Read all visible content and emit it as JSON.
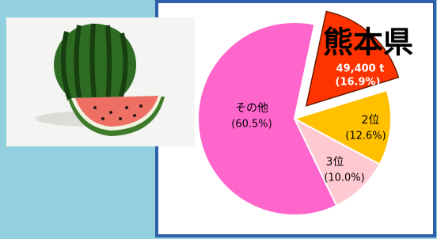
{
  "chart_data": {
    "type": "pie",
    "categories": [
      "熊本県",
      "2位",
      "3位",
      "その他"
    ],
    "values": [
      16.9,
      12.6,
      10.0,
      60.5
    ],
    "value_labels": [
      "(16.9%)",
      "(12.6%)",
      "(10.0%)",
      "(60.5%)"
    ],
    "colors": [
      "#ff3300",
      "#ffc000",
      "#ffc9d2",
      "#ff66cc"
    ],
    "annotations": [
      "49,400 t"
    ]
  }
}
